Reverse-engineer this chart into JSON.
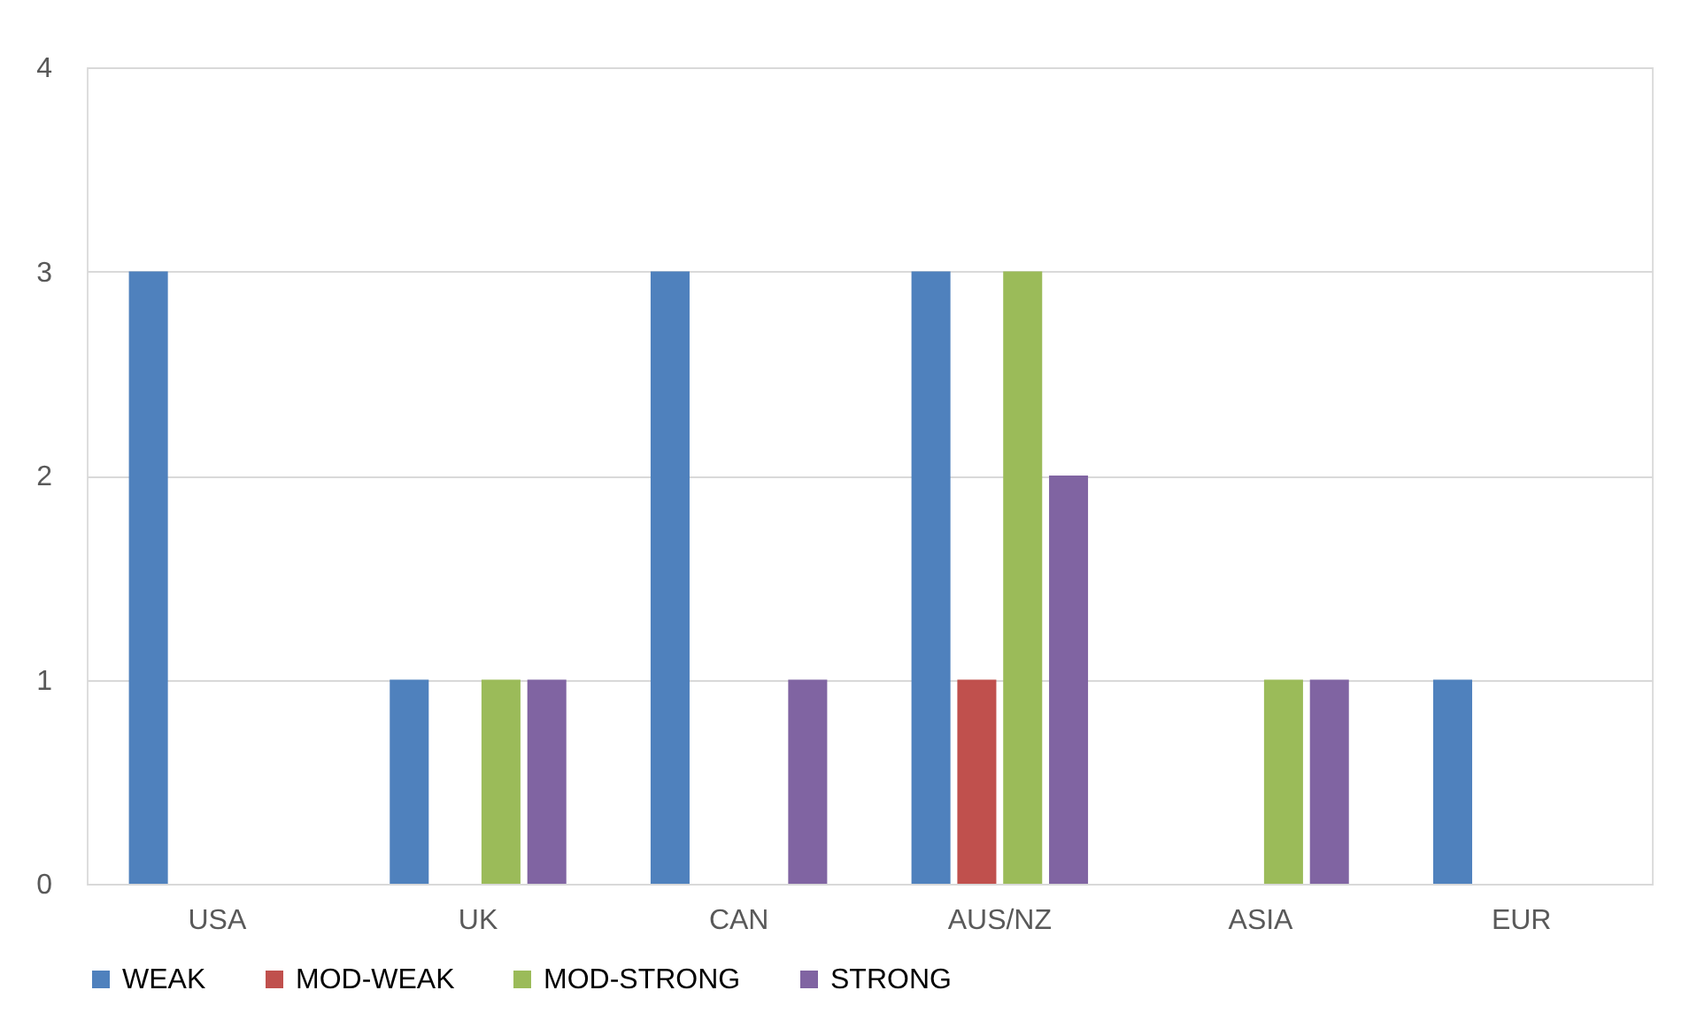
{
  "chart_data": {
    "type": "bar",
    "categories": [
      "USA",
      "UK",
      "CAN",
      "AUS/NZ",
      "ASIA",
      "EUR"
    ],
    "series": [
      {
        "name": "WEAK",
        "color": "#4f81bd",
        "values": [
          3,
          1,
          3,
          3,
          0,
          1
        ]
      },
      {
        "name": "MOD-WEAK",
        "color": "#c0504d",
        "values": [
          0,
          0,
          0,
          1,
          0,
          0
        ]
      },
      {
        "name": "MOD-STRONG",
        "color": "#9bbb59",
        "values": [
          0,
          1,
          0,
          3,
          1,
          0
        ]
      },
      {
        "name": "STRONG",
        "color": "#8064a2",
        "values": [
          0,
          1,
          1,
          2,
          1,
          0
        ]
      }
    ],
    "ylim": [
      0,
      4
    ],
    "yticks": [
      0,
      1,
      2,
      3,
      4
    ],
    "grid": "y",
    "legend": "bottom"
  }
}
